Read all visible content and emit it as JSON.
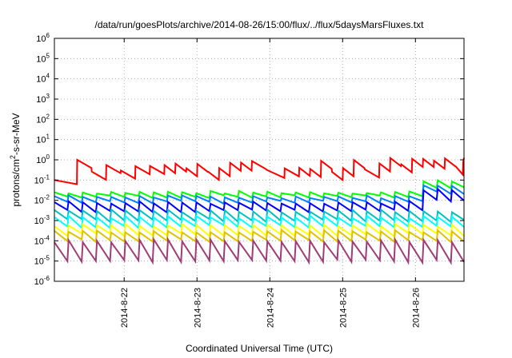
{
  "chart_data": {
    "type": "line",
    "title": "/data/run/goesPlots/archive/2014-08-26/15:00/flux/../flux/5daysMarsFluxes.txt",
    "xlabel": "Coordinated Universal Time (UTC)",
    "ylabel": "protons/cm²-s-sr-MeV",
    "yscale": "log",
    "ylim_exp": [
      -6,
      6
    ],
    "y_tick_labels": [
      "10-6",
      "10-5",
      "10-4",
      "10-3",
      "10-2",
      "10-1",
      "100",
      "101",
      "102",
      "103",
      "104",
      "105",
      "106"
    ],
    "x_tick_labels": [
      "2014-8-22",
      "2014-8-23",
      "2014-8-24",
      "2014-8-25",
      "2014-8-26"
    ],
    "x_range_days": [
      "2014-8-21 01:00",
      "2014-8-26 16:00"
    ],
    "grid": true,
    "legend": "none",
    "series_colors": [
      "#ff0000",
      "#00ff00",
      "#0080ff",
      "#0000ff",
      "#00c0c0",
      "#00ffff",
      "#ffff00",
      "#e0c000",
      "#a03c78"
    ],
    "series": [
      {
        "color": "#ff0000",
        "base": 0.1,
        "peak": 0.5,
        "notes": "slow sawtooth rising to ~1"
      },
      {
        "color": "#00ff00",
        "base": 0.015,
        "peak": 0.025
      },
      {
        "color": "#0080ff",
        "base": 0.008,
        "peak": 0.015
      },
      {
        "color": "#0000ff",
        "base": 0.003,
        "peak": 0.008
      },
      {
        "color": "#00c0c0",
        "base": 0.001,
        "peak": 0.003
      },
      {
        "color": "#00ffff",
        "base": 0.0005,
        "peak": 0.0015
      },
      {
        "color": "#ffff00",
        "base": 0.0002,
        "peak": 0.0006
      },
      {
        "color": "#e0c000",
        "base": 0.0001,
        "peak": 0.0003
      },
      {
        "color": "#a03c78",
        "base": 1e-05,
        "peak": 0.0001
      }
    ]
  }
}
